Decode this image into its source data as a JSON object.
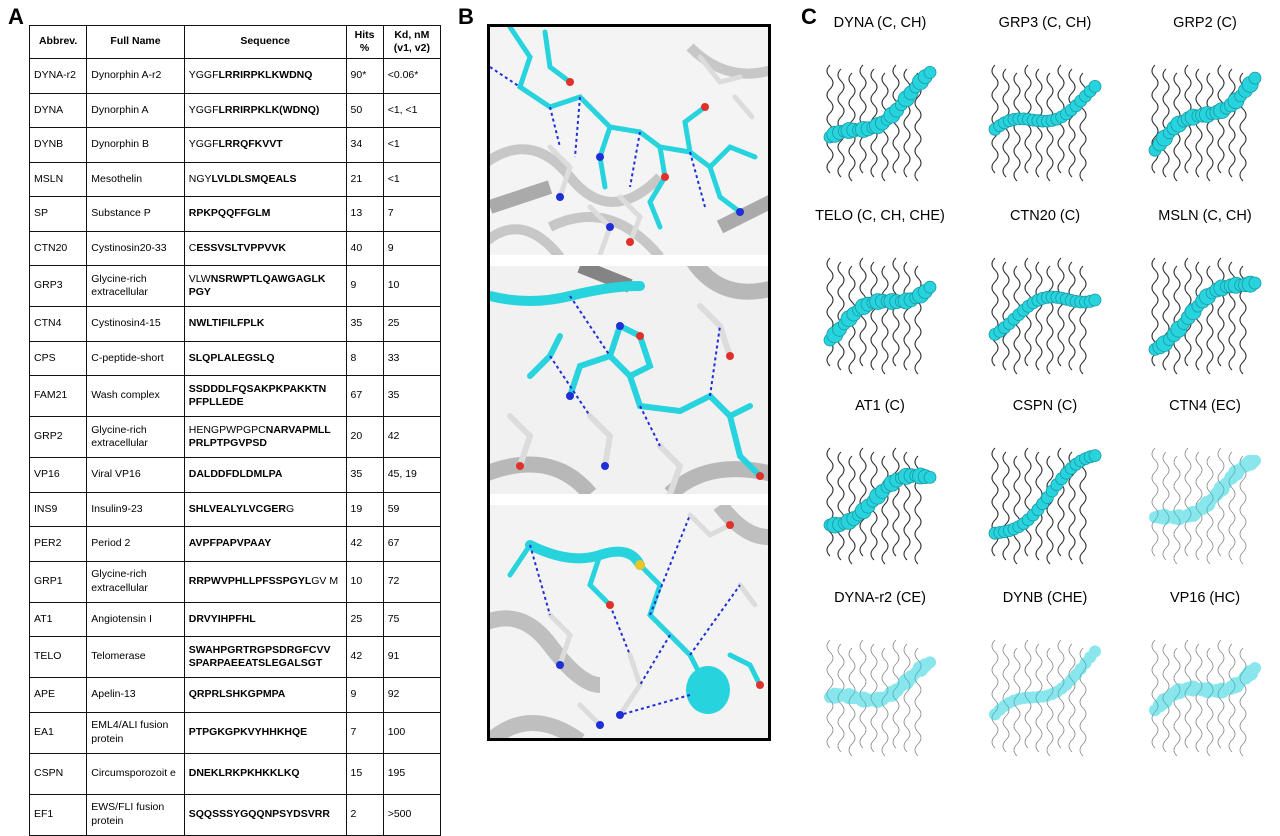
{
  "panels": {
    "a": "A",
    "b": "B",
    "c": "C"
  },
  "table": {
    "headers": {
      "abbrev": "Abbrev.",
      "full_name": "Full Name",
      "sequence": "Sequence",
      "hits": "Hits %",
      "kd": "Kd, nM (v1, v2)"
    },
    "rows": [
      {
        "abbrev": "DYNA-r2",
        "full_name": "Dynorphin A-r2",
        "seq_plain": "YGGF",
        "seq_bold": "LRRIRPKLKWDNQ",
        "seq_tail": "",
        "hits": "90*",
        "kd": "<0.06*"
      },
      {
        "abbrev": "DYNA",
        "full_name": "Dynorphin A",
        "seq_plain": "YGGF",
        "seq_bold": "LRRIRPKLK(WDNQ)",
        "seq_tail": "",
        "hits": "50",
        "kd": "<1, <1"
      },
      {
        "abbrev": "DYNB",
        "full_name": "Dynorphin B",
        "seq_plain": "YGGF",
        "seq_bold": "LRRQFKVVT",
        "seq_tail": "",
        "hits": "34",
        "kd": "<1"
      },
      {
        "abbrev": "MSLN",
        "full_name": "Mesothelin",
        "seq_plain": "NGY",
        "seq_bold": "LVLDLSMQEALS",
        "seq_tail": "",
        "hits": "21",
        "kd": "<1"
      },
      {
        "abbrev": "SP",
        "full_name": "Substance P",
        "seq_plain": "",
        "seq_bold": "RPKPQQFFGLM",
        "seq_tail": "",
        "hits": "13",
        "kd": "7"
      },
      {
        "abbrev": "CTN20",
        "full_name": "Cystinosin20-33",
        "seq_plain": "C",
        "seq_bold": "ESSVSLTVPPVVK",
        "seq_tail": "",
        "hits": "40",
        "kd": "9"
      },
      {
        "abbrev": "GRP3",
        "full_name": "Glycine-rich extracellular",
        "seq_plain": "VLW",
        "seq_bold": "NSRWPTLQAWGAGLK PGY",
        "seq_tail": "",
        "hits": "9",
        "kd": "10"
      },
      {
        "abbrev": "CTN4",
        "full_name": "Cystinosin4-15",
        "seq_plain": "",
        "seq_bold": "NWLTIFILFPLK",
        "seq_tail": "",
        "hits": "35",
        "kd": "25"
      },
      {
        "abbrev": "CPS",
        "full_name": "C-peptide-short",
        "seq_plain": "",
        "seq_bold": "SLQPLALEGSLQ",
        "seq_tail": "",
        "hits": "8",
        "kd": "33"
      },
      {
        "abbrev": "FAM21",
        "full_name": "Wash complex",
        "seq_plain": "",
        "seq_bold": "SSDDDLFQSAKPKPAKKTN PFPLLEDE",
        "seq_tail": "",
        "hits": "67",
        "kd": "35"
      },
      {
        "abbrev": "GRP2",
        "full_name": "Glycine-rich extracellular",
        "seq_plain": "HENGPWPGPC",
        "seq_bold": "NARVAPMLL PRLPTPGVPSD",
        "seq_tail": "",
        "hits": "20",
        "kd": "42"
      },
      {
        "abbrev": "VP16",
        "full_name": "Viral VP16",
        "seq_plain": "",
        "seq_bold": "DALDDFDLDMLPA",
        "seq_tail": "",
        "hits": "35",
        "kd": "45, 19"
      },
      {
        "abbrev": "INS9",
        "full_name": "Insulin9-23",
        "seq_plain": "",
        "seq_bold": "SHLVEALYLVCGER",
        "seq_tail": "G",
        "hits": "19",
        "kd": "59"
      },
      {
        "abbrev": "PER2",
        "full_name": "Period 2",
        "seq_plain": "",
        "seq_bold": "AVPFPAPVPAAY",
        "seq_tail": "",
        "hits": "42",
        "kd": "67"
      },
      {
        "abbrev": "GRP1",
        "full_name": "Glycine-rich extracellular",
        "seq_plain": "",
        "seq_bold": "RRPWVPHLLPFSSPGYL",
        "seq_tail": "GV M",
        "hits": "10",
        "kd": "72"
      },
      {
        "abbrev": "AT1",
        "full_name": "Angiotensin I",
        "seq_plain": "",
        "seq_bold": "DRVYIHPFHL",
        "seq_tail": "",
        "hits": "25",
        "kd": "75"
      },
      {
        "abbrev": "TELO",
        "full_name": "Telomerase",
        "seq_plain": "",
        "seq_bold": "SWAHPGRTRGPSDRGFCVV SPARPAEEATSLEGALSGT",
        "seq_tail": "",
        "hits": "42",
        "kd": "91"
      },
      {
        "abbrev": "APE",
        "full_name": "Apelin-13",
        "seq_plain": "",
        "seq_bold": "QRPRLSHKGPMPA",
        "seq_tail": "",
        "hits": "9",
        "kd": "92"
      },
      {
        "abbrev": "EA1",
        "full_name": "EML4/ALI fusion protein",
        "seq_plain": "",
        "seq_bold": "PTPGKGPKVYHHKHQE",
        "seq_tail": "",
        "hits": "7",
        "kd": "100"
      },
      {
        "abbrev": "CSPN",
        "full_name": "Circumsporozoit e",
        "seq_plain": "",
        "seq_bold": "DNEKLRKPKHKKLKQ",
        "seq_tail": "",
        "hits": "15",
        "kd": "195"
      },
      {
        "abbrev": "EF1",
        "full_name": "EWS/FLI fusion protein",
        "seq_plain": "",
        "seq_bold": "SQQSSSYGQQNPSYDSVRR",
        "seq_tail": "",
        "hits": "2",
        "kd": ">500"
      }
    ]
  },
  "structures": [
    {
      "label": "DYNA (C, CH)",
      "style": "solid"
    },
    {
      "label": "GRP3 (C, CH)",
      "style": "solid"
    },
    {
      "label": "GRP2 (C)",
      "style": "solid"
    },
    {
      "label": "TELO (C, CH, CHE)",
      "style": "solid"
    },
    {
      "label": "CTN20 (C)",
      "style": "solid"
    },
    {
      "label": "MSLN (C, CH)",
      "style": "solid"
    },
    {
      "label": "AT1 (C)",
      "style": "solid"
    },
    {
      "label": "CSPN (C)",
      "style": "solid"
    },
    {
      "label": "CTN4 (EC)",
      "style": "transparent"
    },
    {
      "label": "DYNA-r2 (CE)",
      "style": "transparent"
    },
    {
      "label": "DYNB (CHE)",
      "style": "transparent"
    },
    {
      "label": "VP16 (HC)",
      "style": "transparent"
    }
  ],
  "colors": {
    "peptide": "#27d3dd",
    "protein": "#d8d8d8",
    "nitrogen": "#1f2fd6",
    "oxygen": "#e0302a",
    "sulfur": "#e6c62a"
  }
}
